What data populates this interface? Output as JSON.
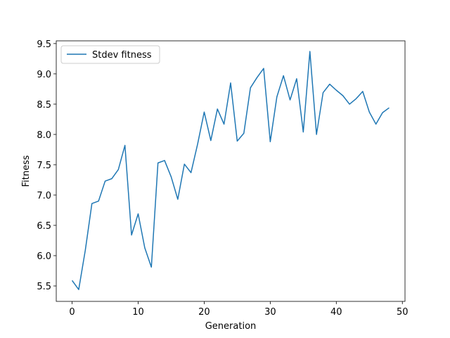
{
  "chart_data": {
    "type": "line",
    "title": "",
    "xlabel": "Generation",
    "ylabel": "Fitness",
    "xlim": [
      -2.4,
      50.4
    ],
    "ylim": [
      5.245,
      9.545
    ],
    "xticks": [
      0,
      10,
      20,
      30,
      40,
      50
    ],
    "yticks": [
      5.5,
      6.0,
      6.5,
      7.0,
      7.5,
      8.0,
      8.5,
      9.0,
      9.5
    ],
    "xtick_labels": [
      "0",
      "10",
      "20",
      "30",
      "40",
      "50"
    ],
    "ytick_labels": [
      "5.5",
      "6.0",
      "6.5",
      "7.0",
      "7.5",
      "8.0",
      "8.5",
      "9.0",
      "9.5"
    ],
    "grid": false,
    "legend": "top-left",
    "series": [
      {
        "name": "Stdev fitness",
        "color": "#1f77b4",
        "x": [
          0,
          1,
          2,
          3,
          4,
          5,
          6,
          7,
          8,
          9,
          10,
          11,
          12,
          13,
          14,
          15,
          16,
          17,
          18,
          19,
          20,
          21,
          22,
          23,
          24,
          25,
          26,
          27,
          28,
          29,
          30,
          31,
          32,
          33,
          34,
          35,
          36,
          37,
          38,
          39,
          40,
          41,
          42,
          43,
          44,
          45,
          46,
          47,
          48
        ],
        "y": [
          5.59,
          5.44,
          6.09,
          6.86,
          6.9,
          7.23,
          7.27,
          7.42,
          7.82,
          6.34,
          6.69,
          6.13,
          5.81,
          7.53,
          7.57,
          7.3,
          6.93,
          7.51,
          7.37,
          7.84,
          8.37,
          7.9,
          8.42,
          8.17,
          8.85,
          7.89,
          8.02,
          8.77,
          8.94,
          9.09,
          7.88,
          8.62,
          8.97,
          8.57,
          8.92,
          8.04,
          9.37,
          8.0,
          8.69,
          8.83,
          8.73,
          8.64,
          8.5,
          8.59,
          8.71,
          8.37,
          8.17,
          8.36,
          8.44
        ]
      }
    ]
  }
}
